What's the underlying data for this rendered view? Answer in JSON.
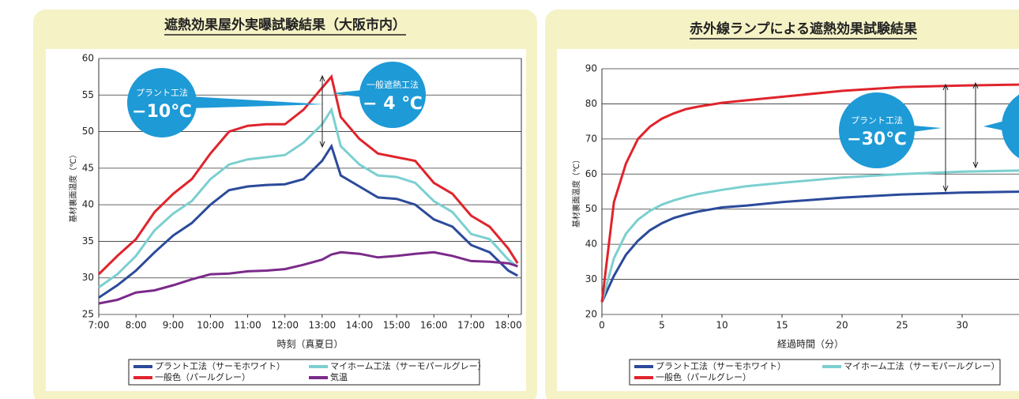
{
  "chart_data": [
    {
      "type": "line",
      "title": "遮熱効果屋外実曝試験結果（大阪市内）",
      "xlabel": "時刻（真夏日）",
      "ylabel": "基材裏面温度（℃）",
      "x": [
        7,
        7.5,
        8,
        8.5,
        9,
        9.5,
        10,
        10.5,
        11,
        11.5,
        12,
        12.5,
        13,
        13.25,
        13.5,
        14,
        14.5,
        15,
        15.5,
        16,
        16.5,
        17,
        17.5,
        18,
        18.25
      ],
      "xlim": [
        7,
        18.35
      ],
      "xticks": [
        {
          "value": 7,
          "label": "7:00"
        },
        {
          "value": 8,
          "label": "8:00"
        },
        {
          "value": 9,
          "label": "9:00"
        },
        {
          "value": 10,
          "label": "10:00"
        },
        {
          "value": 11,
          "label": "11:00"
        },
        {
          "value": 12,
          "label": "12:00"
        },
        {
          "value": 13,
          "label": "13:00"
        },
        {
          "value": 14,
          "label": "14:00"
        },
        {
          "value": 15,
          "label": "15:00"
        },
        {
          "value": 16,
          "label": "16:00"
        },
        {
          "value": 17,
          "label": "17:00"
        },
        {
          "value": 18,
          "label": "18:00"
        }
      ],
      "ylim": [
        25,
        60
      ],
      "yticks": [
        25,
        30,
        35,
        40,
        45,
        50,
        55,
        60
      ],
      "grid": true,
      "series": [
        {
          "name": "プラント工法（サーモホワイト）",
          "color": "#2b4a9a",
          "values": [
            27.3,
            29,
            31,
            33.5,
            35.8,
            37.5,
            40,
            42,
            42.5,
            42.7,
            42.8,
            43.5,
            46,
            48,
            44,
            42.5,
            41,
            40.8,
            40,
            38,
            37,
            34.5,
            33.5,
            31,
            30.3
          ]
        },
        {
          "name": "マイホーム工法（サーモパールグレー）",
          "color": "#7ccfd0",
          "values": [
            28.7,
            30.5,
            33,
            36.5,
            38.8,
            40.5,
            43.5,
            45.5,
            46.2,
            46.5,
            46.8,
            48.5,
            51,
            53,
            48,
            45.5,
            44,
            43.8,
            43,
            40.5,
            39,
            36,
            35.3,
            32.5,
            31.5
          ]
        },
        {
          "name": "一般色（パールグレー）",
          "color": "#e0242c",
          "values": [
            30.5,
            33,
            35.3,
            39,
            41.5,
            43.5,
            47,
            50,
            50.8,
            51,
            51,
            53,
            56,
            57.5,
            52,
            49,
            47,
            46.5,
            46,
            43,
            41.5,
            38.5,
            37,
            34,
            32
          ]
        },
        {
          "name": "気温",
          "color": "#7b2a8a",
          "values": [
            26.5,
            27,
            28,
            28.3,
            29,
            29.8,
            30.5,
            30.6,
            30.9,
            31,
            31.2,
            31.8,
            32.5,
            33.2,
            33.5,
            33.3,
            32.8,
            33,
            33.3,
            33.5,
            33,
            32.3,
            32.2,
            32,
            31.6
          ]
        }
      ],
      "annotations": [
        {
          "label": "プラント工法",
          "value": "−10℃"
        },
        {
          "label": "一般遮熱工法",
          "value": "− 4 ℃"
        }
      ]
    },
    {
      "type": "line",
      "title": "赤外線ランプによる遮熱効果試験結果",
      "xlabel": "経過時間（分）",
      "ylabel": "基材裏面温度（℃）",
      "x": [
        0,
        1,
        2,
        3,
        4,
        5,
        6,
        7,
        8,
        10,
        12,
        15,
        20,
        25,
        30,
        35
      ],
      "xlim": [
        0,
        35
      ],
      "xticks": [
        0,
        5,
        10,
        15,
        20,
        25,
        30
      ],
      "ylim": [
        20,
        90
      ],
      "yticks": [
        20,
        30,
        40,
        50,
        60,
        70,
        80,
        90
      ],
      "grid": true,
      "series": [
        {
          "name": "プラント工法（サーモホワイト）",
          "color": "#2b4a9a",
          "values": [
            23.5,
            31,
            37,
            41,
            44,
            46,
            47.5,
            48.5,
            49.3,
            50.5,
            51,
            52,
            53.3,
            54.2,
            54.7,
            55
          ]
        },
        {
          "name": "マイホーム工法（サーモパールグレー）",
          "color": "#7ccfd0",
          "values": [
            23.5,
            36,
            43,
            47,
            49.5,
            51.3,
            52.5,
            53.5,
            54.3,
            55.5,
            56.5,
            57.5,
            59,
            60,
            60.7,
            61
          ]
        },
        {
          "name": "一般色（パールグレー）",
          "color": "#e0242c",
          "values": [
            23.5,
            52,
            63,
            70,
            73.5,
            75.8,
            77.3,
            78.5,
            79.2,
            80.3,
            81,
            82,
            83.7,
            84.8,
            85.2,
            85.5
          ]
        }
      ],
      "annotations": [
        {
          "label": "プラント工法",
          "value": "−30℃"
        }
      ]
    }
  ]
}
